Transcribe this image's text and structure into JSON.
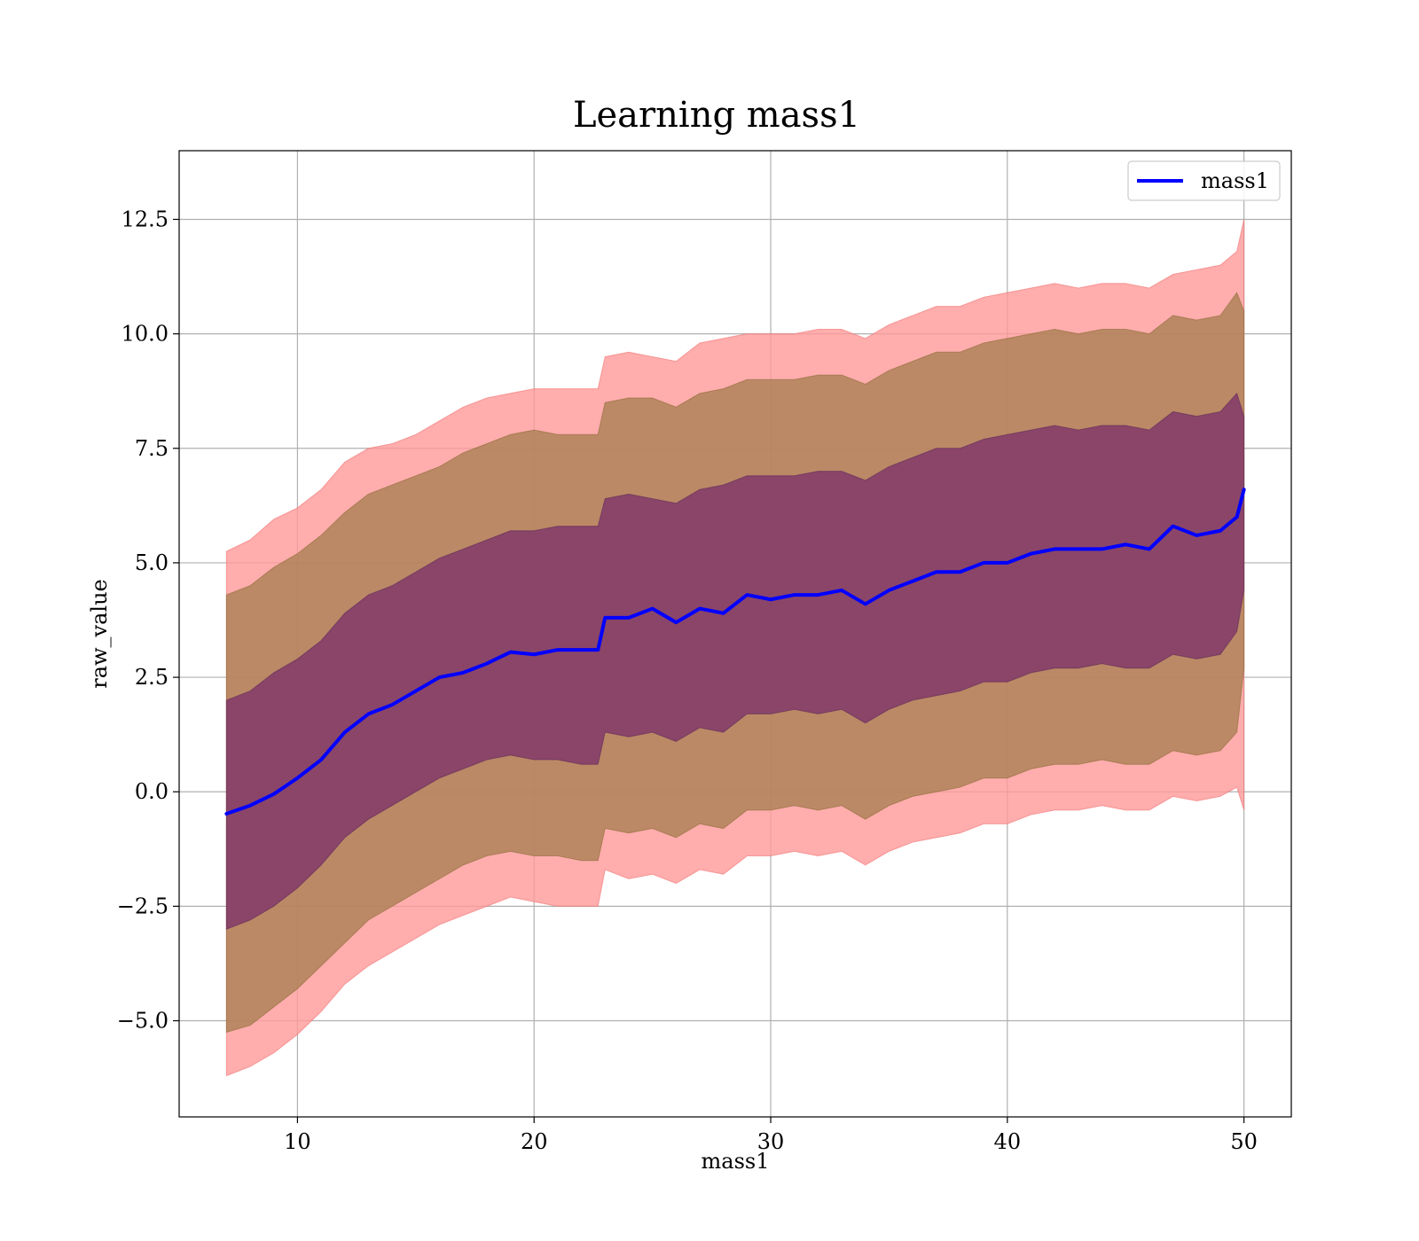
{
  "chart_data": {
    "type": "line",
    "title": "Learning mass1",
    "xlabel": "mass1",
    "ylabel": "raw_value",
    "xlim": [
      5,
      52
    ],
    "ylim": [
      -7.1,
      14
    ],
    "x_ticks": [
      10,
      20,
      30,
      40,
      50
    ],
    "x_tick_labels": [
      "10",
      "20",
      "30",
      "40",
      "50"
    ],
    "y_ticks": [
      -5.0,
      -2.5,
      0.0,
      2.5,
      5.0,
      7.5,
      10.0,
      12.5
    ],
    "y_tick_labels": [
      "−5.0",
      "−2.5",
      "0.0",
      "2.5",
      "5.0",
      "7.5",
      "10.0",
      "12.5"
    ],
    "grid": true,
    "legend": {
      "position": "top-right",
      "entries": [
        "mass1"
      ]
    },
    "colors": {
      "line": "#0000ff",
      "band_outer": "#ff9999",
      "band_middle": "#a57d4f",
      "band_inner": "#7a2f6b"
    },
    "x": [
      7,
      8,
      9,
      10,
      11,
      12,
      13,
      14,
      15,
      16,
      17,
      18,
      19,
      20,
      21,
      22,
      22.7,
      23,
      24,
      25,
      26,
      27,
      28,
      29,
      30,
      31,
      32,
      33,
      34,
      35,
      36,
      37,
      38,
      39,
      40,
      41,
      42,
      43,
      44,
      45,
      46,
      47,
      48,
      49,
      49.7,
      50
    ],
    "series": [
      {
        "name": "mass1",
        "values": [
          -0.48,
          -0.3,
          -0.05,
          0.3,
          0.7,
          1.3,
          1.7,
          1.9,
          2.2,
          2.5,
          2.6,
          2.8,
          3.05,
          3.0,
          3.1,
          3.1,
          3.1,
          3.8,
          3.8,
          4.0,
          3.7,
          4.0,
          3.9,
          4.3,
          4.2,
          4.3,
          4.3,
          4.4,
          4.1,
          4.4,
          4.6,
          4.8,
          4.8,
          5.0,
          5.0,
          5.2,
          5.3,
          5.3,
          5.3,
          5.4,
          5.3,
          5.8,
          5.6,
          5.7,
          6.0,
          6.6
        ]
      }
    ],
    "bands": [
      {
        "level": "outer",
        "upper": [
          5.25,
          5.5,
          5.95,
          6.2,
          6.6,
          7.2,
          7.5,
          7.6,
          7.8,
          8.1,
          8.4,
          8.6,
          8.7,
          8.8,
          8.8,
          8.8,
          8.8,
          9.5,
          9.6,
          9.5,
          9.4,
          9.8,
          9.9,
          10.0,
          10.0,
          10.0,
          10.1,
          10.1,
          9.9,
          10.2,
          10.4,
          10.6,
          10.6,
          10.8,
          10.9,
          11.0,
          11.1,
          11.0,
          11.1,
          11.1,
          11.0,
          11.3,
          11.4,
          11.5,
          11.8,
          12.5
        ],
        "lower": [
          -6.2,
          -6.0,
          -5.7,
          -5.3,
          -4.8,
          -4.2,
          -3.8,
          -3.5,
          -3.2,
          -2.9,
          -2.7,
          -2.5,
          -2.3,
          -2.4,
          -2.5,
          -2.5,
          -2.5,
          -1.7,
          -1.9,
          -1.8,
          -2.0,
          -1.7,
          -1.8,
          -1.4,
          -1.4,
          -1.3,
          -1.4,
          -1.3,
          -1.6,
          -1.3,
          -1.1,
          -1.0,
          -0.9,
          -0.7,
          -0.7,
          -0.5,
          -0.4,
          -0.4,
          -0.3,
          -0.4,
          -0.4,
          -0.1,
          -0.2,
          -0.1,
          0.1,
          -0.4
        ]
      },
      {
        "level": "middle",
        "upper": [
          4.3,
          4.5,
          4.9,
          5.2,
          5.6,
          6.1,
          6.5,
          6.7,
          6.9,
          7.1,
          7.4,
          7.6,
          7.8,
          7.9,
          7.8,
          7.8,
          7.8,
          8.5,
          8.6,
          8.6,
          8.4,
          8.7,
          8.8,
          9.0,
          9.0,
          9.0,
          9.1,
          9.1,
          8.9,
          9.2,
          9.4,
          9.6,
          9.6,
          9.8,
          9.9,
          10.0,
          10.1,
          10.0,
          10.1,
          10.1,
          10.0,
          10.4,
          10.3,
          10.4,
          10.9,
          10.5
        ],
        "lower": [
          -5.25,
          -5.1,
          -4.7,
          -4.3,
          -3.8,
          -3.3,
          -2.8,
          -2.5,
          -2.2,
          -1.9,
          -1.6,
          -1.4,
          -1.3,
          -1.4,
          -1.4,
          -1.5,
          -1.5,
          -0.8,
          -0.9,
          -0.8,
          -1.0,
          -0.7,
          -0.8,
          -0.4,
          -0.4,
          -0.3,
          -0.4,
          -0.3,
          -0.6,
          -0.3,
          -0.1,
          0.0,
          0.1,
          0.3,
          0.3,
          0.5,
          0.6,
          0.6,
          0.7,
          0.6,
          0.6,
          0.9,
          0.8,
          0.9,
          1.3,
          2.7
        ]
      },
      {
        "level": "inner",
        "upper": [
          2.0,
          2.2,
          2.6,
          2.9,
          3.3,
          3.9,
          4.3,
          4.5,
          4.8,
          5.1,
          5.3,
          5.5,
          5.7,
          5.7,
          5.8,
          5.8,
          5.8,
          6.4,
          6.5,
          6.4,
          6.3,
          6.6,
          6.7,
          6.9,
          6.9,
          6.9,
          7.0,
          7.0,
          6.8,
          7.1,
          7.3,
          7.5,
          7.5,
          7.7,
          7.8,
          7.9,
          8.0,
          7.9,
          8.0,
          8.0,
          7.9,
          8.3,
          8.2,
          8.3,
          8.7,
          8.2
        ],
        "lower": [
          -3.0,
          -2.8,
          -2.5,
          -2.1,
          -1.6,
          -1.0,
          -0.6,
          -0.3,
          0.0,
          0.3,
          0.5,
          0.7,
          0.8,
          0.7,
          0.7,
          0.6,
          0.6,
          1.3,
          1.2,
          1.3,
          1.1,
          1.4,
          1.3,
          1.7,
          1.7,
          1.8,
          1.7,
          1.8,
          1.5,
          1.8,
          2.0,
          2.1,
          2.2,
          2.4,
          2.4,
          2.6,
          2.7,
          2.7,
          2.8,
          2.7,
          2.7,
          3.0,
          2.9,
          3.0,
          3.5,
          4.4
        ]
      }
    ]
  }
}
